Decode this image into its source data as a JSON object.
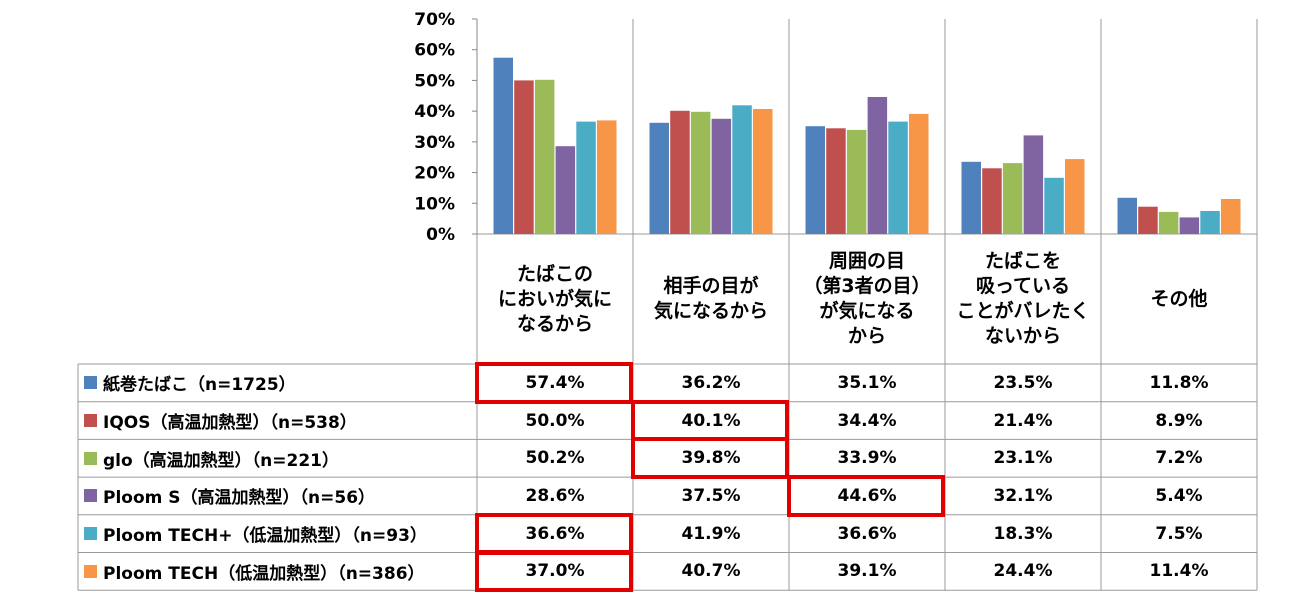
{
  "chart_data": {
    "type": "bar",
    "categories": [
      "たばこの\nにおいが気に\nなるから",
      "相手の目が\n気になるから",
      "周囲の目\n（第3者の目）\nが気になる\nから",
      "たばこを\n吸っている\nことがバレたく\nないから",
      "その他"
    ],
    "series": [
      {
        "name": "紙巻たばこ（n=1725）",
        "color": "#4f81bd",
        "values": [
          57.4,
          36.2,
          35.1,
          23.5,
          11.8
        ],
        "labels": [
          "57.4%",
          "36.2%",
          "35.1%",
          "23.5%",
          "11.8%"
        ]
      },
      {
        "name": "IQOS（高温加熱型）（n=538）",
        "color": "#c0504d",
        "values": [
          50.0,
          40.1,
          34.4,
          21.4,
          8.9
        ],
        "labels": [
          "50.0%",
          "40.1%",
          "34.4%",
          "21.4%",
          "8.9%"
        ]
      },
      {
        "name": "glo（高温加熱型）（n=221）",
        "color": "#9bbb59",
        "values": [
          50.2,
          39.8,
          33.9,
          23.1,
          7.2
        ],
        "labels": [
          "50.2%",
          "39.8%",
          "33.9%",
          "23.1%",
          "7.2%"
        ]
      },
      {
        "name": "Ploom S（高温加熱型）（n=56）",
        "color": "#8064a2",
        "values": [
          28.6,
          37.5,
          44.6,
          32.1,
          5.4
        ],
        "labels": [
          "28.6%",
          "37.5%",
          "44.6%",
          "32.1%",
          "5.4%"
        ]
      },
      {
        "name": "Ploom TECH+（低温加熱型）（n=93）",
        "color": "#4bacc6",
        "values": [
          36.6,
          41.9,
          36.6,
          18.3,
          7.5
        ],
        "labels": [
          "36.6%",
          "41.9%",
          "36.6%",
          "18.3%",
          "7.5%"
        ]
      },
      {
        "name": "Ploom TECH（低温加熱型）（n=386）",
        "color": "#f79646",
        "values": [
          37.0,
          40.7,
          39.1,
          24.4,
          11.4
        ],
        "labels": [
          "37.0%",
          "40.7%",
          "39.1%",
          "24.4%",
          "11.4%"
        ]
      }
    ],
    "yticks": [
      "0%",
      "10%",
      "20%",
      "30%",
      "40%",
      "50%",
      "60%",
      "70%"
    ],
    "ylim": [
      0,
      70
    ],
    "grid": false,
    "legend": "table-left",
    "highlighted_cells": [
      {
        "series": 0,
        "category": 0
      },
      {
        "series": 1,
        "category": 1
      },
      {
        "series": 2,
        "category": 1
      },
      {
        "series": 3,
        "category": 2
      },
      {
        "series": 4,
        "category": 0
      },
      {
        "series": 5,
        "category": 0
      }
    ],
    "highlight_color": "#e00000"
  }
}
